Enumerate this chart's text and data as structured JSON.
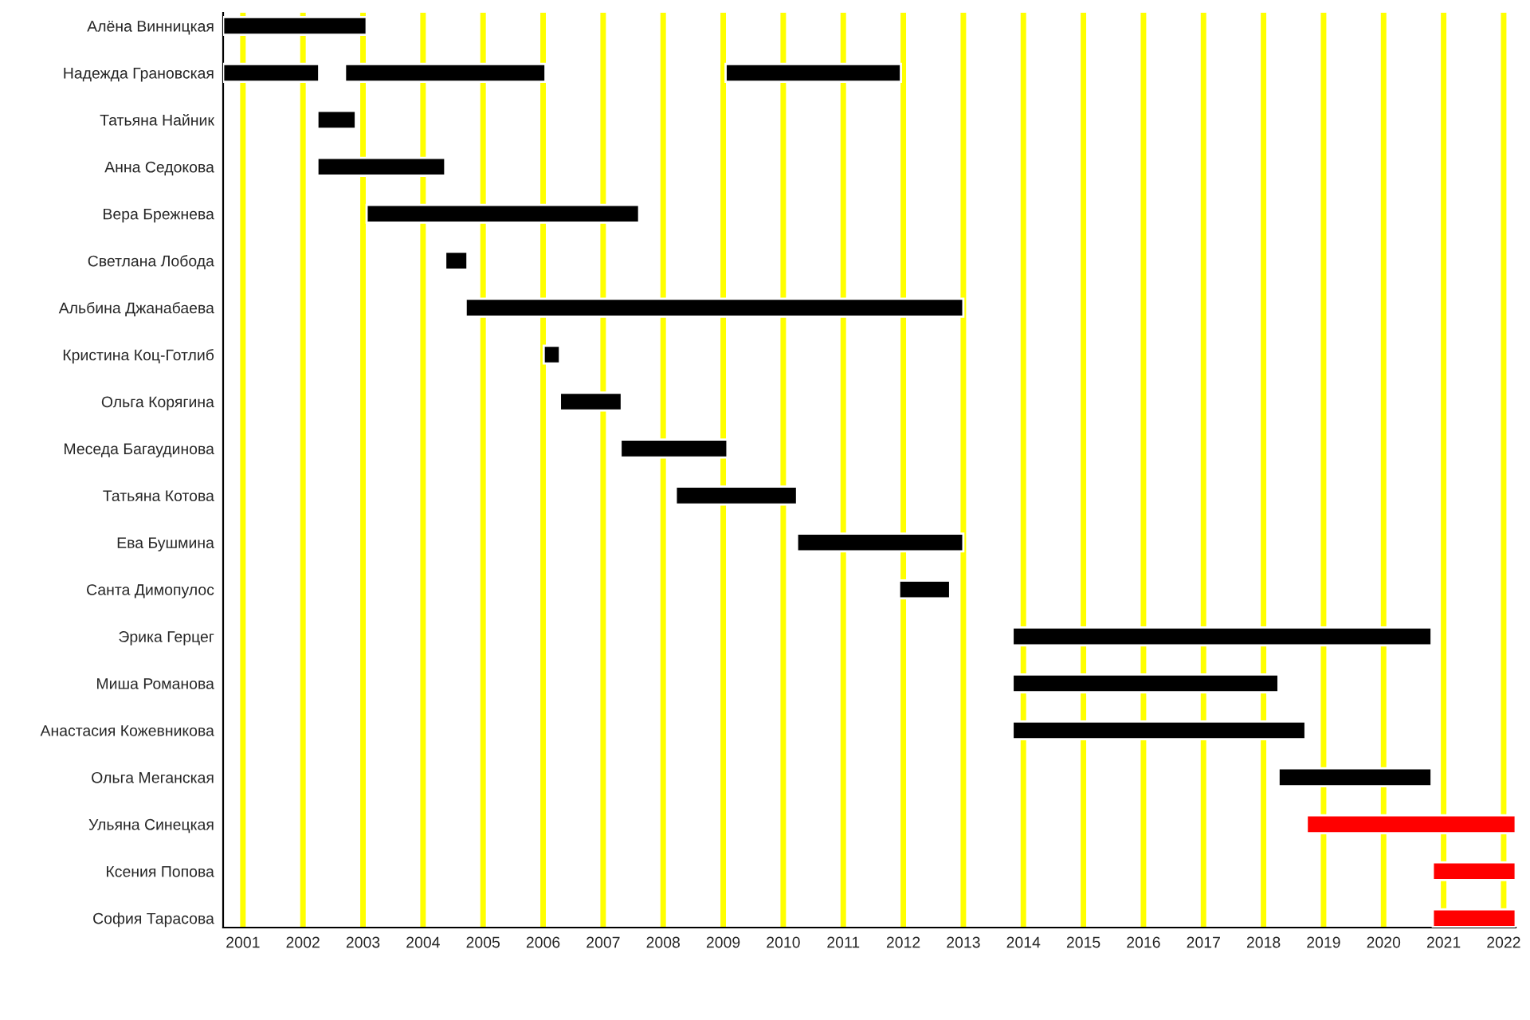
{
  "chart_data": {
    "type": "bar",
    "orientation": "horizontal",
    "grid": "x",
    "categories": [
      "Алёна Винницкая",
      "Надежда Грановская",
      "Татьяна Найник",
      "Анна Седокова",
      "Вера Брежнева",
      "Светлана Лобода",
      "Альбина Джанабаева",
      "Кристина Коц-Готлиб",
      "Ольга Корягина",
      "Меседа Багаудинова",
      "Татьяна Котова",
      "Ева Бушмина",
      "Санта Димопулос",
      "Эрика Герцег",
      "Миша Романова",
      "Анастасия Кожевникова",
      "Ольга Меганская",
      "Ульяна Синецкая",
      "Ксения Попова",
      "София Тарасова"
    ],
    "series": [
      {
        "colors": [
          "#000000",
          "#000000",
          "#000000",
          "#000000",
          "#000000",
          "#000000",
          "#000000",
          "#000000",
          "#000000",
          "#000000",
          "#000000",
          "#000000",
          "#000000",
          "#000000",
          "#000000",
          "#000000",
          "#000000",
          "#ff0000",
          "#ff0000",
          "#ff0000"
        ],
        "base": [
          2000.67,
          2000.67,
          2002.24,
          2002.24,
          2003.06,
          2004.37,
          2004.71,
          2006.01,
          2006.28,
          2007.29,
          2008.21,
          2010.23,
          2011.93,
          2013.82,
          2013.82,
          2013.82,
          2018.25,
          2018.72,
          2020.82,
          2020.82
        ],
        "values": [
          2.39,
          1.6,
          0.64,
          2.13,
          4.54,
          0.37,
          8.29,
          0.27,
          1.03,
          1.78,
          2.02,
          2.77,
          0.85,
          6.98,
          4.43,
          4.88,
          2.55,
          3.48,
          1.38,
          1.38
        ]
      },
      {
        "color": "#000000",
        "base": [
          null,
          2002.7,
          null,
          null,
          null,
          null,
          null,
          null,
          null,
          null,
          null,
          null,
          null,
          null,
          null,
          null,
          null,
          null,
          null,
          null
        ],
        "values": [
          null,
          3.34,
          null,
          null,
          null,
          null,
          null,
          null,
          null,
          null,
          null,
          null,
          null,
          null,
          null,
          null,
          null,
          null,
          null,
          null
        ]
      },
      {
        "color": "#000000",
        "base": [
          null,
          2009.04,
          null,
          null,
          null,
          null,
          null,
          null,
          null,
          null,
          null,
          null,
          null,
          null,
          null,
          null,
          null,
          null,
          null,
          null
        ],
        "values": [
          null,
          2.92,
          null,
          null,
          null,
          null,
          null,
          null,
          null,
          null,
          null,
          null,
          null,
          null,
          null,
          null,
          null,
          null,
          null,
          null
        ]
      }
    ],
    "xlim": [
      2000.67,
      2022.2
    ],
    "xticks": [
      2001,
      2002,
      2003,
      2004,
      2005,
      2006,
      2007,
      2008,
      2009,
      2010,
      2011,
      2012,
      2013,
      2014,
      2015,
      2016,
      2017,
      2018,
      2019,
      2020,
      2021,
      2022
    ]
  }
}
